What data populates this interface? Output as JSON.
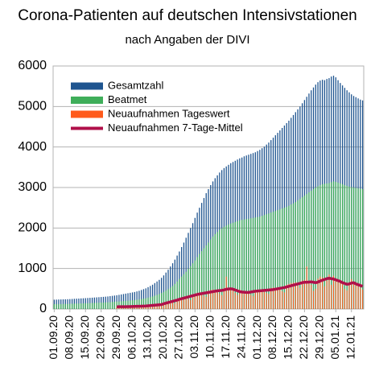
{
  "chart_data": {
    "type": "bar",
    "title": "Corona-Patienten auf deutschen Intensivstationen",
    "subtitle": "nach Angaben der DIVI",
    "categories": [
      "01.09.20",
      null,
      null,
      null,
      null,
      null,
      null,
      "08.09.20",
      null,
      null,
      null,
      null,
      null,
      null,
      "15.09.20",
      null,
      null,
      null,
      null,
      null,
      null,
      "22.09.20",
      null,
      null,
      null,
      null,
      null,
      null,
      "29.09.20",
      null,
      null,
      null,
      null,
      null,
      null,
      "06.10.20",
      null,
      null,
      null,
      null,
      null,
      null,
      "13.10.20",
      null,
      null,
      null,
      null,
      null,
      null,
      "20.10.20",
      null,
      null,
      null,
      null,
      null,
      null,
      "27.10.20",
      null,
      null,
      null,
      null,
      null,
      null,
      "03.11.20",
      null,
      null,
      null,
      null,
      null,
      null,
      "10.11.20",
      null,
      null,
      null,
      null,
      null,
      null,
      "17.11.20",
      null,
      null,
      null,
      null,
      null,
      null,
      "24.11.20",
      null,
      null,
      null,
      null,
      null,
      null,
      "01.12.20",
      null,
      null,
      null,
      null,
      null,
      null,
      "08.12.20",
      null,
      null,
      null,
      null,
      null,
      null,
      "15.12.20",
      null,
      null,
      null,
      null,
      null,
      null,
      "22.12.20",
      null,
      null,
      null,
      null,
      null,
      null,
      "29.12.20",
      null,
      null,
      null,
      null,
      null,
      null,
      "05.01.21",
      null,
      null,
      null,
      null,
      null,
      null,
      "12.01.21",
      null,
      null,
      null,
      null,
      null
    ],
    "series": [
      {
        "name": "Gesamtzahl",
        "color": "#1f5590",
        "values": [
          230,
          232,
          235,
          236,
          238,
          240,
          242,
          245,
          248,
          252,
          255,
          258,
          262,
          265,
          268,
          272,
          276,
          280,
          284,
          288,
          292,
          296,
          300,
          305,
          310,
          318,
          325,
          332,
          340,
          350,
          360,
          370,
          380,
          390,
          400,
          410,
          420,
          435,
          450,
          470,
          490,
          510,
          540,
          570,
          600,
          640,
          680,
          720,
          770,
          830,
          900,
          970,
          1050,
          1130,
          1220,
          1320,
          1420,
          1530,
          1640,
          1760,
          1880,
          2000,
          2120,
          2250,
          2380,
          2500,
          2620,
          2740,
          2860,
          2960,
          3060,
          3150,
          3230,
          3300,
          3370,
          3430,
          3480,
          3520,
          3560,
          3600,
          3630,
          3660,
          3690,
          3720,
          3740,
          3770,
          3790,
          3810,
          3830,
          3850,
          3870,
          3900,
          3930,
          3970,
          4010,
          4060,
          4110,
          4170,
          4230,
          4290,
          4350,
          4410,
          4470,
          4530,
          4590,
          4650,
          4720,
          4790,
          4860,
          4930,
          5000,
          5080,
          5160,
          5240,
          5320,
          5400,
          5470,
          5540,
          5600,
          5640,
          5660,
          5650,
          5680,
          5700,
          5740,
          5760,
          5720,
          5650,
          5580,
          5520,
          5460,
          5400,
          5350,
          5300,
          5260,
          5230,
          5200,
          5170,
          5150
        ]
      },
      {
        "name": "Beatmet",
        "color": "#3fae5a",
        "values": [
          120,
          121,
          122,
          123,
          124,
          125,
          126,
          128,
          130,
          132,
          134,
          136,
          138,
          140,
          142,
          144,
          146,
          148,
          150,
          153,
          156,
          158,
          160,
          163,
          166,
          170,
          174,
          178,
          182,
          186,
          190,
          195,
          200,
          205,
          210,
          215,
          220,
          228,
          236,
          245,
          255,
          265,
          280,
          295,
          310,
          330,
          350,
          370,
          395,
          420,
          455,
          490,
          530,
          570,
          620,
          680,
          740,
          800,
          860,
          920,
          990,
          1060,
          1130,
          1200,
          1280,
          1360,
          1430,
          1500,
          1570,
          1640,
          1720,
          1790,
          1850,
          1900,
          1950,
          1990,
          2030,
          2060,
          2090,
          2110,
          2130,
          2150,
          2170,
          2190,
          2200,
          2210,
          2220,
          2230,
          2240,
          2250,
          2260,
          2270,
          2280,
          2300,
          2320,
          2340,
          2360,
          2380,
          2400,
          2420,
          2440,
          2460,
          2480,
          2500,
          2520,
          2550,
          2580,
          2610,
          2640,
          2680,
          2720,
          2760,
          2800,
          2840,
          2880,
          2920,
          2960,
          3000,
          3030,
          3060,
          3080,
          3090,
          3100,
          3110,
          3130,
          3150,
          3140,
          3120,
          3100,
          3080,
          3060,
          3040,
          3020,
          3010,
          3000,
          2990,
          2980,
          2970,
          2960
        ]
      },
      {
        "name": "Neuaufnahmen Tageswert",
        "color": "#ff5b1c",
        "values": [
          null,
          null,
          null,
          null,
          null,
          null,
          null,
          null,
          null,
          null,
          null,
          null,
          null,
          null,
          null,
          null,
          null,
          null,
          null,
          null,
          null,
          null,
          null,
          null,
          null,
          null,
          null,
          null,
          55,
          60,
          58,
          62,
          50,
          45,
          65,
          70,
          72,
          75,
          68,
          60,
          55,
          85,
          95,
          100,
          105,
          110,
          90,
          80,
          130,
          150,
          170,
          180,
          190,
          160,
          140,
          230,
          260,
          280,
          300,
          290,
          250,
          220,
          350,
          380,
          400,
          390,
          410,
          330,
          300,
          450,
          470,
          480,
          460,
          450,
          380,
          340,
          520,
          800,
          510,
          490,
          470,
          400,
          350,
          480,
          420,
          410,
          400,
          390,
          350,
          320,
          470,
          480,
          470,
          460,
          450,
          400,
          370,
          520,
          530,
          520,
          510,
          500,
          440,
          410,
          600,
          620,
          640,
          650,
          660,
          580,
          520,
          700,
          720,
          1050,
          680,
          600,
          450,
          500,
          750,
          800,
          780,
          560,
          700,
          850,
          600,
          820,
          760,
          720,
          700,
          680,
          500,
          460,
          620,
          740,
          680,
          650,
          620,
          520,
          480
        ]
      },
      {
        "name": "Neuaufnahmen 7-Tage-Mittel",
        "color": "#b0104a",
        "type": "line",
        "values": [
          null,
          null,
          null,
          null,
          null,
          null,
          null,
          null,
          null,
          null,
          null,
          null,
          null,
          null,
          null,
          null,
          null,
          null,
          null,
          null,
          null,
          null,
          null,
          null,
          null,
          null,
          null,
          null,
          55,
          56,
          57,
          58,
          58,
          59,
          60,
          62,
          64,
          66,
          68,
          70,
          72,
          75,
          80,
          85,
          90,
          95,
          100,
          105,
          110,
          130,
          145,
          160,
          175,
          190,
          205,
          220,
          240,
          255,
          270,
          285,
          300,
          315,
          330,
          345,
          360,
          370,
          380,
          390,
          400,
          410,
          420,
          430,
          440,
          450,
          455,
          460,
          470,
          490,
          495,
          500,
          490,
          470,
          450,
          430,
          420,
          415,
          410,
          410,
          420,
          430,
          440,
          445,
          450,
          455,
          460,
          465,
          470,
          475,
          480,
          490,
          500,
          510,
          520,
          530,
          545,
          560,
          575,
          590,
          605,
          620,
          635,
          650,
          660,
          660,
          665,
          670,
          660,
          650,
          665,
          690,
          710,
          730,
          750,
          760,
          750,
          740,
          720,
          700,
          680,
          650,
          630,
          610,
          620,
          640,
          650,
          620,
          600,
          580,
          560
        ]
      }
    ],
    "ylim": [
      0,
      6000
    ],
    "yticks": [
      0,
      1000,
      2000,
      3000,
      4000,
      5000,
      6000
    ],
    "grid": true,
    "legend": "upper left"
  }
}
